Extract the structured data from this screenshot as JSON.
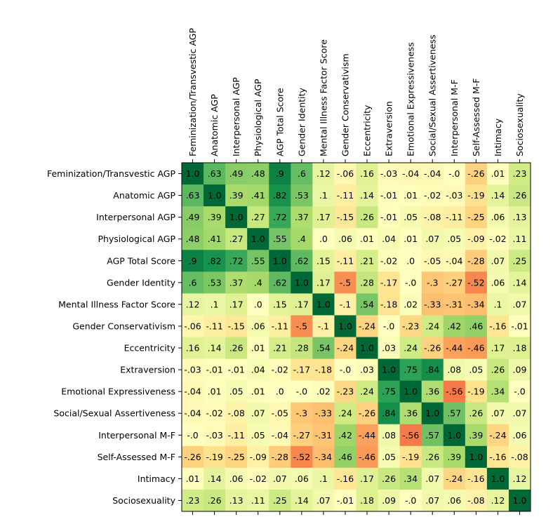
{
  "chart_data": {
    "type": "heatmap",
    "title": "",
    "xlabel": "",
    "ylabel": "",
    "colormap": "RdYlGn (-1 red, 0 yellow, +1 dark green)",
    "vrange": [
      -1,
      1
    ],
    "categories": [
      "Feminization/Transvestic AGP",
      "Anatomic AGP",
      "Interpersonal AGP",
      "Physiological AGP",
      "AGP Total Score",
      "Gender Identity",
      "Mental Illness Factor Score",
      "Gender Conservativism",
      "Eccentricity",
      "Extraversion",
      "Emotional Expressiveness",
      "Social/Sexual Assertiveness",
      "Interpersonal M-F",
      "Self-Assessed M-F",
      "Intimacy",
      "Sociosexuality"
    ],
    "values": [
      [
        1.0,
        0.63,
        0.49,
        0.48,
        0.9,
        0.6,
        0.12,
        -0.06,
        0.16,
        -0.03,
        -0.04,
        -0.04,
        -0.0,
        -0.26,
        0.01,
        0.23
      ],
      [
        0.63,
        1.0,
        0.39,
        0.41,
        0.82,
        0.53,
        0.1,
        -0.11,
        0.14,
        -0.01,
        0.01,
        -0.02,
        -0.03,
        -0.19,
        0.14,
        0.26
      ],
      [
        0.49,
        0.39,
        1.0,
        0.27,
        0.72,
        0.37,
        0.17,
        -0.15,
        0.26,
        -0.01,
        0.05,
        -0.08,
        -0.11,
        -0.25,
        0.06,
        0.13
      ],
      [
        0.48,
        0.41,
        0.27,
        1.0,
        0.55,
        0.4,
        0.0,
        0.06,
        0.01,
        0.04,
        0.01,
        0.07,
        0.05,
        -0.09,
        -0.02,
        0.11
      ],
      [
        0.9,
        0.82,
        0.72,
        0.55,
        1.0,
        0.62,
        0.15,
        -0.11,
        0.21,
        -0.02,
        0.0,
        -0.05,
        -0.04,
        -0.28,
        0.07,
        0.25
      ],
      [
        0.6,
        0.53,
        0.37,
        0.4,
        0.62,
        1.0,
        0.17,
        -0.5,
        0.28,
        -0.17,
        -0.0,
        -0.3,
        -0.27,
        -0.52,
        0.06,
        0.14
      ],
      [
        0.12,
        0.1,
        0.17,
        0.0,
        0.15,
        0.17,
        1.0,
        -0.1,
        0.54,
        -0.18,
        0.02,
        -0.33,
        -0.31,
        -0.34,
        0.1,
        0.07
      ],
      [
        -0.06,
        -0.11,
        -0.15,
        0.06,
        -0.11,
        -0.5,
        -0.1,
        1.0,
        -0.24,
        -0.0,
        -0.23,
        0.24,
        0.42,
        0.46,
        -0.16,
        -0.01
      ],
      [
        0.16,
        0.14,
        0.26,
        0.01,
        0.21,
        0.28,
        0.54,
        -0.24,
        1.0,
        0.03,
        0.24,
        -0.26,
        -0.44,
        -0.46,
        0.17,
        0.18
      ],
      [
        -0.03,
        -0.01,
        -0.01,
        0.04,
        -0.02,
        -0.17,
        -0.18,
        -0.0,
        0.03,
        1.0,
        0.75,
        0.84,
        0.08,
        0.05,
        0.26,
        0.09
      ],
      [
        -0.04,
        0.01,
        0.05,
        0.01,
        0.0,
        -0.0,
        0.02,
        -0.23,
        0.24,
        0.75,
        1.0,
        0.36,
        -0.56,
        -0.19,
        0.34,
        -0.0
      ],
      [
        -0.04,
        -0.02,
        -0.08,
        0.07,
        -0.05,
        -0.3,
        -0.33,
        0.24,
        -0.26,
        0.84,
        0.36,
        1.0,
        0.57,
        0.26,
        0.07,
        0.07
      ],
      [
        -0.0,
        -0.03,
        -0.11,
        0.05,
        -0.04,
        -0.27,
        -0.31,
        0.42,
        -0.44,
        0.08,
        -0.56,
        0.57,
        1.0,
        0.39,
        -0.24,
        0.06
      ],
      [
        -0.26,
        -0.19,
        -0.25,
        -0.09,
        -0.28,
        -0.52,
        -0.34,
        0.46,
        -0.46,
        0.05,
        -0.19,
        0.26,
        0.39,
        1.0,
        -0.16,
        -0.08
      ],
      [
        0.01,
        0.14,
        0.06,
        -0.02,
        0.07,
        0.06,
        0.1,
        -0.16,
        0.17,
        0.26,
        0.34,
        0.07,
        -0.24,
        -0.16,
        1.0,
        0.12
      ],
      [
        0.23,
        0.26,
        0.13,
        0.11,
        0.25,
        0.14,
        0.07,
        -0.01,
        0.18,
        0.09,
        -0.0,
        0.07,
        0.06,
        -0.08,
        0.12,
        1.0
      ]
    ],
    "labels": [
      [
        "1.0",
        ".63",
        ".49",
        ".48",
        ".9",
        ".6",
        ".12",
        "-.06",
        ".16",
        "-.03",
        "-.04",
        "-.04",
        "-.0",
        "-.26",
        ".01",
        ".23"
      ],
      [
        ".63",
        "1.0",
        ".39",
        ".41",
        ".82",
        ".53",
        ".1",
        "-.11",
        ".14",
        "-.01",
        ".01",
        "-.02",
        "-.03",
        "-.19",
        ".14",
        ".26"
      ],
      [
        ".49",
        ".39",
        "1.0",
        ".27",
        ".72",
        ".37",
        ".17",
        "-.15",
        ".26",
        "-.01",
        ".05",
        "-.08",
        "-.11",
        "-.25",
        ".06",
        ".13"
      ],
      [
        ".48",
        ".41",
        ".27",
        "1.0",
        ".55",
        ".4",
        ".0",
        ".06",
        ".01",
        ".04",
        ".01",
        ".07",
        ".05",
        "-.09",
        "-.02",
        ".11"
      ],
      [
        ".9",
        ".82",
        ".72",
        ".55",
        "1.0",
        ".62",
        ".15",
        "-.11",
        ".21",
        "-.02",
        ".0",
        "-.05",
        "-.04",
        "-.28",
        ".07",
        ".25"
      ],
      [
        ".6",
        ".53",
        ".37",
        ".4",
        ".62",
        "1.0",
        ".17",
        "-.5",
        ".28",
        "-.17",
        "-.0",
        "-.3",
        "-.27",
        "-.52",
        ".06",
        ".14"
      ],
      [
        ".12",
        ".1",
        ".17",
        ".0",
        ".15",
        ".17",
        "1.0",
        "-.1",
        ".54",
        "-.18",
        ".02",
        "-.33",
        "-.31",
        "-.34",
        ".1",
        ".07"
      ],
      [
        "-.06",
        "-.11",
        "-.15",
        ".06",
        "-.11",
        "-.5",
        "-.1",
        "1.0",
        "-.24",
        "-.0",
        "-.23",
        ".24",
        ".42",
        ".46",
        "-.16",
        "-.01"
      ],
      [
        ".16",
        ".14",
        ".26",
        ".01",
        ".21",
        ".28",
        ".54",
        "-.24",
        "1.0",
        ".03",
        ".24",
        "-.26",
        "-.44",
        "-.46",
        ".17",
        ".18"
      ],
      [
        "-.03",
        "-.01",
        "-.01",
        ".04",
        "-.02",
        "-.17",
        "-.18",
        "-.0",
        ".03",
        "1.0",
        ".75",
        ".84",
        ".08",
        ".05",
        ".26",
        ".09"
      ],
      [
        "-.04",
        ".01",
        ".05",
        ".01",
        ".0",
        "-.0",
        ".02",
        "-.23",
        ".24",
        ".75",
        "1.0",
        ".36",
        "-.56",
        "-.19",
        ".34",
        "-.0"
      ],
      [
        "-.04",
        "-.02",
        "-.08",
        ".07",
        "-.05",
        "-.3",
        "-.33",
        ".24",
        "-.26",
        ".84",
        ".36",
        "1.0",
        ".57",
        ".26",
        ".07",
        ".07"
      ],
      [
        "-.0",
        "-.03",
        "-.11",
        ".05",
        "-.04",
        "-.27",
        "-.31",
        ".42",
        "-.44",
        ".08",
        "-.56",
        ".57",
        "1.0",
        ".39",
        "-.24",
        ".06"
      ],
      [
        "-.26",
        "-.19",
        "-.25",
        "-.09",
        "-.28",
        "-.52",
        "-.34",
        ".46",
        "-.46",
        ".05",
        "-.19",
        ".26",
        ".39",
        "1.0",
        "-.16",
        "-.08"
      ],
      [
        ".01",
        ".14",
        ".06",
        "-.02",
        ".07",
        ".06",
        ".1",
        "-.16",
        ".17",
        ".26",
        ".34",
        ".07",
        "-.24",
        "-.16",
        "1.0",
        ".12"
      ],
      [
        ".23",
        ".26",
        ".13",
        ".11",
        ".25",
        ".14",
        ".07",
        "-.01",
        ".18",
        ".09",
        "-.0",
        ".07",
        ".06",
        "-.08",
        ".12",
        "1.0"
      ]
    ],
    "grid": false,
    "legend": "none"
  }
}
